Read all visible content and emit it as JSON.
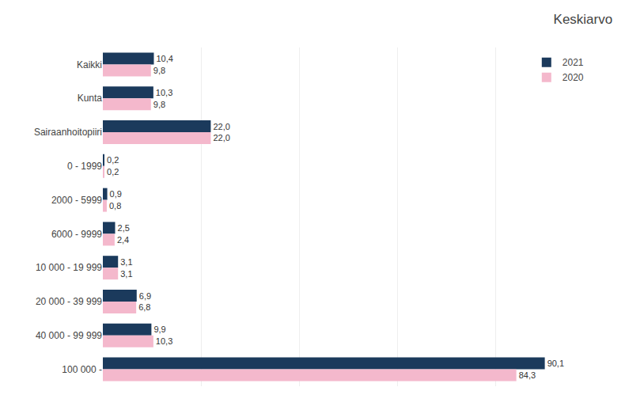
{
  "chart_data": {
    "type": "bar",
    "orientation": "horizontal",
    "title": "Keskiarvo",
    "categories": [
      "Kaikki",
      "Kunta",
      "Sairaanhoitopiiri",
      "0 - 1999",
      "2000 - 5999",
      "6000 - 9999",
      "10 000 - 19 999",
      "20 000 - 39 999",
      "40 000 - 99 999",
      "100 000 -"
    ],
    "series": [
      {
        "name": "2021",
        "color": "#1b3a5c",
        "values": [
          10.4,
          10.3,
          22.0,
          0.2,
          0.9,
          2.5,
          3.1,
          6.9,
          9.9,
          90.1
        ],
        "value_labels": [
          "10,4",
          "10,3",
          "22,0",
          "0,2",
          "0,9",
          "2,5",
          "3,1",
          "6,9",
          "9,9",
          "90,1"
        ]
      },
      {
        "name": "2020",
        "color": "#f4b8cc",
        "values": [
          9.8,
          9.8,
          22.0,
          0.2,
          0.8,
          2.4,
          3.1,
          6.8,
          10.3,
          84.3
        ],
        "value_labels": [
          "9,8",
          "9,8",
          "22,0",
          "0,2",
          "0,8",
          "2,4",
          "3,1",
          "6,8",
          "10,3",
          "84,3"
        ]
      }
    ],
    "xlim": [
      0,
      100
    ],
    "xticks": [
      0,
      20,
      40,
      60,
      80,
      100
    ],
    "grid": true,
    "legend": "upper right",
    "data_labels": true,
    "tick_labels": "y"
  }
}
